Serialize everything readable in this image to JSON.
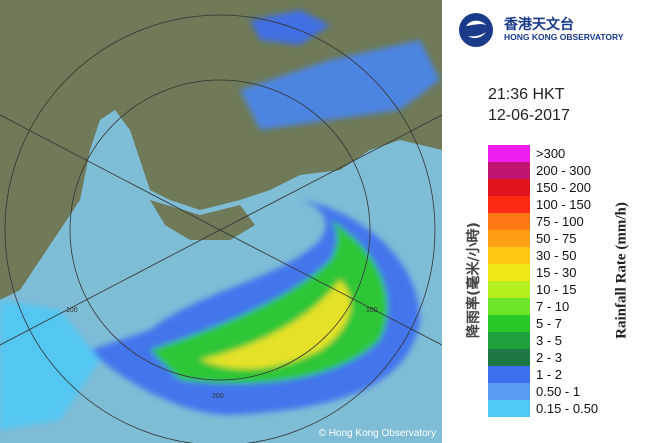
{
  "header": {
    "logo_zh": "香港天文台",
    "logo_en": "HONG KONG OBSERVATORY"
  },
  "timestamp": {
    "time": "21:36 HKT",
    "date": "12-06-2017"
  },
  "legend": {
    "title_zh": "降雨率(毫米/小時)",
    "title_en": "Rainfall Rate (mm/h)",
    "items": [
      {
        "label": ">300",
        "color": "#f01ef0"
      },
      {
        "label": "200 - 300",
        "color": "#c0146e"
      },
      {
        "label": "150 - 200",
        "color": "#e0141e"
      },
      {
        "label": "100 - 150",
        "color": "#ff2814"
      },
      {
        "label": "75 - 100",
        "color": "#ff7814"
      },
      {
        "label": "50 - 75",
        "color": "#ffa014"
      },
      {
        "label": "30 - 50",
        "color": "#ffc814"
      },
      {
        "label": "15 - 30",
        "color": "#f0e614"
      },
      {
        "label": "10 - 15",
        "color": "#b4f01e"
      },
      {
        "label": "7 - 10",
        "color": "#6ee628"
      },
      {
        "label": "5 - 7",
        "color": "#28c828"
      },
      {
        "label": "3 - 5",
        "color": "#1ea03c"
      },
      {
        "label": "2 - 3",
        "color": "#1e7846"
      },
      {
        "label": "1 - 2",
        "color": "#3c6ef0"
      },
      {
        "label": "0.50 - 1",
        "color": "#5a9cf5"
      },
      {
        "label": "0.15 - 0.50",
        "color": "#50c8f5"
      }
    ]
  },
  "map": {
    "ring_labels": [
      "100",
      "100",
      "200"
    ],
    "credit": "© Hong Kong Observatory"
  }
}
